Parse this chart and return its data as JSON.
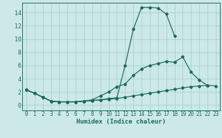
{
  "xlabel": "Humidex (Indice chaleur)",
  "xlim": [
    -0.5,
    23.5
  ],
  "ylim": [
    -0.8,
    15.5
  ],
  "yticks": [
    0,
    2,
    4,
    6,
    8,
    10,
    12,
    14
  ],
  "xticks": [
    0,
    1,
    2,
    3,
    4,
    5,
    6,
    7,
    8,
    9,
    10,
    11,
    12,
    13,
    14,
    15,
    16,
    17,
    18,
    19,
    20,
    21,
    22,
    23
  ],
  "background_color": "#cce8e8",
  "grid_color": "#aacfcf",
  "line_color": "#1a6b5a",
  "series": [
    {
      "x": [
        0,
        1,
        2,
        3,
        4,
        5,
        6,
        7,
        8,
        9,
        10,
        11,
        12,
        13,
        14,
        15,
        16,
        17,
        18
      ],
      "y": [
        2.3,
        1.8,
        1.2,
        0.6,
        0.5,
        0.5,
        0.5,
        0.6,
        0.7,
        0.8,
        1.0,
        1.1,
        6.0,
        11.5,
        14.8,
        14.8,
        14.7,
        13.8,
        10.5
      ]
    },
    {
      "x": [
        0,
        1,
        2,
        3,
        4,
        5,
        6,
        7,
        8,
        9,
        10,
        11,
        12,
        13,
        14,
        15,
        16,
        17,
        18,
        19,
        20,
        21,
        22
      ],
      "y": [
        2.3,
        1.8,
        1.2,
        0.6,
        0.5,
        0.5,
        0.5,
        0.6,
        0.8,
        1.4,
        2.0,
        2.8,
        3.2,
        4.5,
        5.5,
        6.0,
        6.3,
        6.6,
        6.5,
        7.3,
        5.0,
        3.8,
        3.0
      ]
    },
    {
      "x": [
        0,
        1,
        2,
        3,
        4,
        5,
        6,
        7,
        8,
        9,
        10,
        11,
        12,
        13,
        14,
        15,
        16,
        17,
        18,
        19,
        20,
        21,
        22,
        23
      ],
      "y": [
        2.3,
        1.8,
        1.2,
        0.6,
        0.5,
        0.5,
        0.5,
        0.6,
        0.7,
        0.8,
        0.9,
        1.0,
        1.2,
        1.4,
        1.6,
        1.8,
        2.0,
        2.2,
        2.4,
        2.6,
        2.8,
        2.9,
        3.0,
        2.9
      ]
    }
  ]
}
